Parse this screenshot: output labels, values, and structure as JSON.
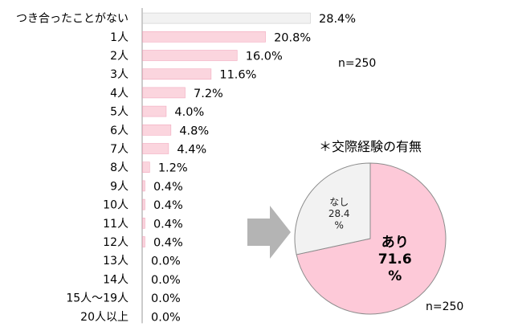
{
  "chart_data": [
    {
      "type": "bar",
      "orientation": "horizontal",
      "categories": [
        "つき合ったことがない",
        "1人",
        "2人",
        "3人",
        "4人",
        "5人",
        "6人",
        "7人",
        "8人",
        "9人",
        "10人",
        "11人",
        "12人",
        "13人",
        "14人",
        "15人〜19人",
        "20人以上"
      ],
      "values": [
        28.4,
        20.8,
        16.0,
        11.6,
        7.2,
        4.0,
        4.8,
        4.4,
        1.2,
        0.4,
        0.4,
        0.4,
        0.4,
        0.0,
        0.0,
        0.0,
        0.0
      ],
      "value_labels": [
        "28.4%",
        "20.8%",
        "16.0%",
        "11.6%",
        "7.2%",
        "4.0%",
        "4.8%",
        "4.4%",
        "1.2%",
        "0.4%",
        "0.4%",
        "0.4%",
        "0.4%",
        "0.0%",
        "0.0%",
        "0.0%",
        "0.0%"
      ],
      "unit": "%",
      "xlim": [
        0,
        28.4
      ],
      "annotation": "n=250",
      "colors": {
        "never_dated": "#f2f2f2",
        "dated": "#fbd5de",
        "never_dated_border": "#cccccc",
        "dated_border": "#f2aabf"
      },
      "grid": false
    },
    {
      "type": "pie",
      "title": "＊交際経験の有無",
      "slices": [
        {
          "label_lines": [
            "あり",
            "71.6",
            "%"
          ],
          "value": 71.6,
          "color": "#fdc9d8"
        },
        {
          "label_lines": [
            "なし",
            "28.4",
            "%"
          ],
          "value": 28.4,
          "color": "#f2f2f2"
        }
      ],
      "annotation": "n=250",
      "edge_color": "#8c8c8c"
    }
  ],
  "arrow_color": "#b4b4b4"
}
